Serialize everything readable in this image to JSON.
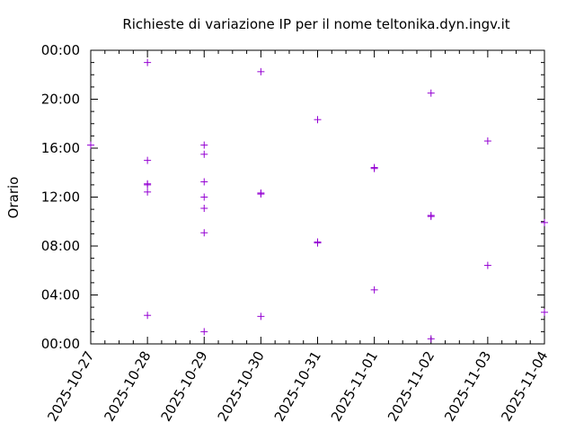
{
  "chart_data": {
    "type": "scatter",
    "title": "Richieste di variazione IP per il nome teltonika.dyn.ingv.it",
    "xlabel": "",
    "ylabel": "Orario",
    "x_ticks": [
      "2025-10-27",
      "2025-10-28",
      "2025-10-29",
      "2025-10-30",
      "2025-10-31",
      "2025-11-01",
      "2025-11-02",
      "2025-11-03",
      "2025-11-04"
    ],
    "y_ticks": [
      "00:00",
      "04:00",
      "08:00",
      "12:00",
      "16:00",
      "20:00",
      "00:00"
    ],
    "xlim": [
      "2025-10-27",
      "2025-11-04"
    ],
    "ylim": [
      "00:00",
      "24:00"
    ],
    "grid": false,
    "marker": "+",
    "color": "#9400d3",
    "points": [
      {
        "date": "2025-10-27",
        "time": "16:15"
      },
      {
        "date": "2025-10-28",
        "time": "23:00"
      },
      {
        "date": "2025-10-28",
        "time": "15:00"
      },
      {
        "date": "2025-10-28",
        "time": "13:05"
      },
      {
        "date": "2025-10-28",
        "time": "13:00"
      },
      {
        "date": "2025-10-28",
        "time": "12:25"
      },
      {
        "date": "2025-10-28",
        "time": "02:20"
      },
      {
        "date": "2025-10-29",
        "time": "16:15"
      },
      {
        "date": "2025-10-29",
        "time": "15:30"
      },
      {
        "date": "2025-10-29",
        "time": "13:15"
      },
      {
        "date": "2025-10-29",
        "time": "12:00"
      },
      {
        "date": "2025-10-29",
        "time": "11:05"
      },
      {
        "date": "2025-10-29",
        "time": "09:05"
      },
      {
        "date": "2025-10-29",
        "time": "01:00"
      },
      {
        "date": "2025-10-30",
        "time": "22:15"
      },
      {
        "date": "2025-10-30",
        "time": "12:20"
      },
      {
        "date": "2025-10-30",
        "time": "12:15"
      },
      {
        "date": "2025-10-30",
        "time": "02:15"
      },
      {
        "date": "2025-10-31",
        "time": "18:20"
      },
      {
        "date": "2025-10-31",
        "time": "08:20"
      },
      {
        "date": "2025-10-31",
        "time": "08:15"
      },
      {
        "date": "2025-11-01",
        "time": "14:25"
      },
      {
        "date": "2025-11-01",
        "time": "14:20"
      },
      {
        "date": "2025-11-01",
        "time": "04:25"
      },
      {
        "date": "2025-11-02",
        "time": "20:30"
      },
      {
        "date": "2025-11-02",
        "time": "10:30"
      },
      {
        "date": "2025-11-02",
        "time": "10:25"
      },
      {
        "date": "2025-11-02",
        "time": "00:25"
      },
      {
        "date": "2025-11-03",
        "time": "16:35"
      },
      {
        "date": "2025-11-03",
        "time": "06:25"
      },
      {
        "date": "2025-11-04",
        "time": "09:55"
      },
      {
        "date": "2025-11-04",
        "time": "02:35"
      }
    ]
  }
}
